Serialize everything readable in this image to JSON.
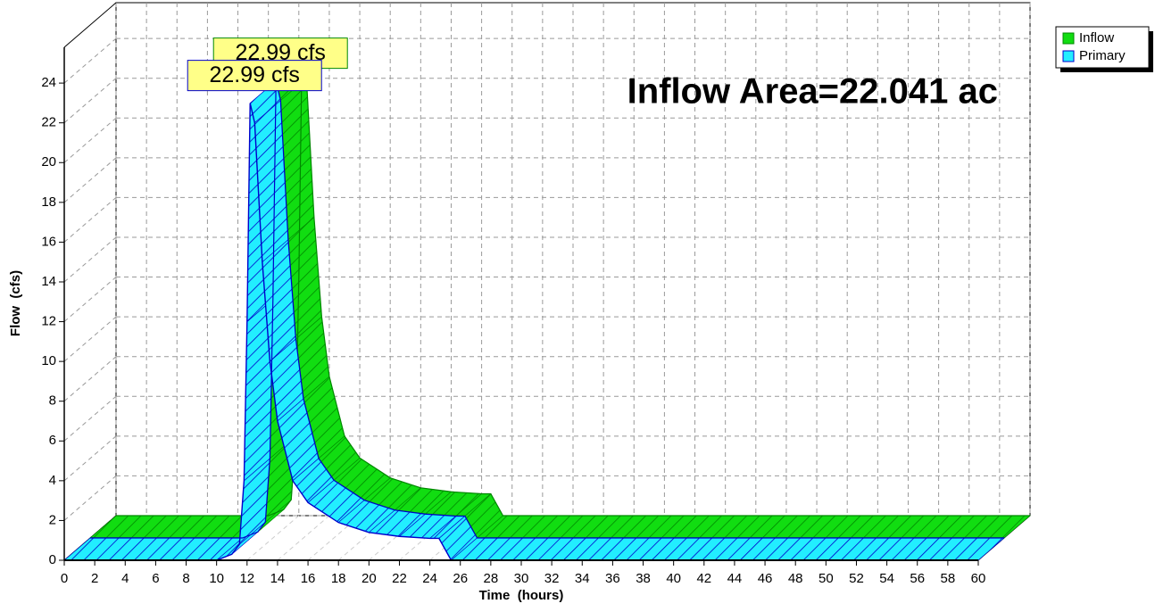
{
  "chart_data": {
    "type": "area3d",
    "annotation": "Inflow Area=22.041 ac",
    "xlabel": "Time  (hours)",
    "ylabel": "Flow  (cfs)",
    "x": [
      0,
      10,
      11,
      11.5,
      11.8,
      12,
      12.2,
      12.5,
      13,
      13.5,
      14,
      15,
      16,
      18,
      20,
      22,
      24,
      24.6,
      25.4,
      60
    ],
    "series": [
      {
        "name": "Inflow",
        "color": "#11dd11",
        "edge": "#008800",
        "values": [
          0,
          0,
          0.3,
          0.8,
          4,
          12,
          22.99,
          22,
          15,
          10,
          7,
          4,
          2.9,
          1.9,
          1.4,
          1.2,
          1.1,
          1.1,
          0,
          0
        ],
        "value_labels": [
          null,
          null,
          null,
          null,
          null,
          null,
          "22.99 cfs",
          null,
          null,
          null,
          null,
          null,
          null,
          null,
          null,
          null,
          null,
          null,
          null,
          null
        ]
      },
      {
        "name": "Primary",
        "color": "#22eeff",
        "edge": "#0000cc",
        "values": [
          0,
          0,
          0.3,
          0.8,
          4,
          12,
          22.99,
          22,
          15,
          10,
          7,
          4,
          2.9,
          1.9,
          1.4,
          1.2,
          1.1,
          1.1,
          0,
          0
        ],
        "value_labels": [
          null,
          null,
          null,
          null,
          null,
          null,
          "22.99 cfs",
          null,
          null,
          null,
          null,
          null,
          null,
          null,
          null,
          null,
          null,
          null,
          null,
          null
        ]
      }
    ],
    "xlim": [
      0,
      60
    ],
    "ylim": [
      0,
      25.8
    ],
    "xticks": [
      0,
      2,
      4,
      6,
      8,
      10,
      12,
      14,
      16,
      18,
      20,
      22,
      24,
      26,
      28,
      30,
      32,
      34,
      36,
      38,
      40,
      42,
      44,
      46,
      48,
      50,
      52,
      54,
      56,
      58,
      60
    ],
    "yticks": [
      0,
      2,
      4,
      6,
      8,
      10,
      12,
      14,
      16,
      18,
      20,
      22,
      24
    ],
    "grid": true,
    "legend": "upper right"
  }
}
